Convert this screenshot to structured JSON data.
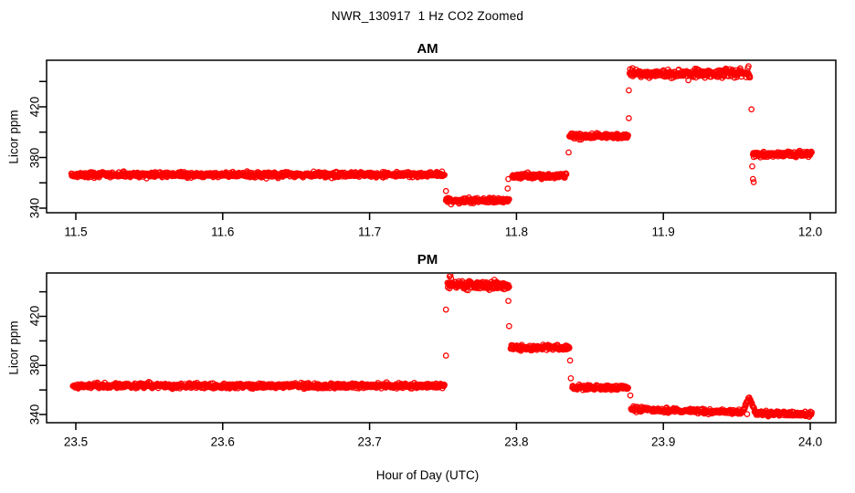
{
  "figure": {
    "title": "NWR_130917  1 Hz CO2 Zoomed",
    "xlabel": "Hour of Day (UTC)",
    "background": "#ffffff",
    "axis_color": "#000000",
    "point_color": "#ff0000"
  },
  "chart_data": [
    {
      "type": "scatter",
      "panel_title": "AM",
      "ylabel": "Licor ppm",
      "marker": "open-circle",
      "color": "#ff0000",
      "sample_rate_hz": 1,
      "xlim": [
        11.5,
        12.0
      ],
      "ylim": [
        336,
        456
      ],
      "grid": false,
      "xticks": [
        11.5,
        11.6,
        11.7,
        11.8,
        11.9,
        12.0
      ],
      "xtick_labels": [
        "11.5",
        "11.6",
        "11.7",
        "11.8",
        "11.9",
        "12.0"
      ],
      "yticks": [
        340,
        360,
        380,
        400,
        420,
        440
      ],
      "ytick_labels": [
        "340",
        "",
        "380",
        "",
        "420",
        ""
      ],
      "segments": [
        {
          "start_hr": 11.497,
          "end_hr": 11.751,
          "start_ppm": 366.3,
          "end_ppm": 366.5,
          "noise_sd_ppm": 1.0
        },
        {
          "start_hr": 11.752,
          "end_hr": 11.795,
          "start_ppm": 346.0,
          "end_ppm": 346.0,
          "noise_sd_ppm": 1.0
        },
        {
          "start_hr": 11.797,
          "end_hr": 11.834,
          "start_ppm": 365.3,
          "end_ppm": 365.3,
          "noise_sd_ppm": 1.0
        },
        {
          "start_hr": 11.836,
          "end_hr": 11.876,
          "start_ppm": 396.8,
          "end_ppm": 396.8,
          "noise_sd_ppm": 1.0
        },
        {
          "start_hr": 11.877,
          "end_hr": 11.959,
          "start_ppm": 446.2,
          "end_ppm": 446.5,
          "noise_sd_ppm": 1.5
        },
        {
          "start_hr": 11.961,
          "end_hr": 12.001,
          "start_ppm": 382.5,
          "end_ppm": 383.0,
          "noise_sd_ppm": 1.0
        }
      ],
      "outliers": [
        [
          11.752,
          353.5
        ],
        [
          11.7555,
          343.0
        ],
        [
          11.794,
          355.5
        ],
        [
          11.7945,
          363.0
        ],
        [
          11.8355,
          384.0
        ],
        [
          11.8765,
          433.0
        ],
        [
          11.8765,
          411.0
        ],
        [
          11.879,
          450.5
        ],
        [
          11.917,
          441.0
        ],
        [
          11.9575,
          450.5
        ],
        [
          11.958,
          452.0
        ],
        [
          11.96,
          418.0
        ],
        [
          11.9605,
          373.0
        ],
        [
          11.961,
          363.0
        ],
        [
          11.9615,
          360.5
        ]
      ]
    },
    {
      "type": "scatter",
      "panel_title": "PM",
      "ylabel": "Licor ppm",
      "marker": "open-circle",
      "color": "#ff0000",
      "sample_rate_hz": 1,
      "xlim": [
        23.5,
        24.0
      ],
      "ylim": [
        330,
        456
      ],
      "grid": false,
      "xticks": [
        23.5,
        23.6,
        23.7,
        23.8,
        23.9,
        24.0
      ],
      "xtick_labels": [
        "23.5",
        "23.6",
        "23.7",
        "23.8",
        "23.9",
        "24.0"
      ],
      "yticks": [
        340,
        360,
        380,
        400,
        420,
        440
      ],
      "ytick_labels": [
        "340",
        "",
        "380",
        "",
        "420",
        ""
      ],
      "segments": [
        {
          "start_hr": 23.498,
          "end_hr": 23.751,
          "start_ppm": 363.5,
          "end_ppm": 363.5,
          "noise_sd_ppm": 1.0
        },
        {
          "start_hr": 23.753,
          "end_hr": 23.795,
          "start_ppm": 445.8,
          "end_ppm": 445.3,
          "noise_sd_ppm": 1.7
        },
        {
          "start_hr": 23.796,
          "end_hr": 23.836,
          "start_ppm": 394.5,
          "end_ppm": 394.5,
          "noise_sd_ppm": 1.0
        },
        {
          "start_hr": 23.838,
          "end_hr": 23.876,
          "start_ppm": 362.0,
          "end_ppm": 362.0,
          "noise_sd_ppm": 1.0
        },
        {
          "start_hr": 23.878,
          "end_hr": 23.954,
          "start_ppm": 344.3,
          "end_ppm": 342.0,
          "noise_sd_ppm": 0.9
        },
        {
          "start_hr": 23.954,
          "end_hr": 23.9585,
          "start_ppm": 342.5,
          "end_ppm": 354.0,
          "noise_sd_ppm": 0.8
        },
        {
          "start_hr": 23.9585,
          "end_hr": 23.963,
          "start_ppm": 354.0,
          "end_ppm": 341.0,
          "noise_sd_ppm": 0.8
        },
        {
          "start_hr": 23.963,
          "end_hr": 24.001,
          "start_ppm": 341.0,
          "end_ppm": 340.3,
          "noise_sd_ppm": 0.9
        }
      ],
      "outliers": [
        [
          23.752,
          425.5
        ],
        [
          23.752,
          388.0
        ],
        [
          23.7545,
          452.5
        ],
        [
          23.755,
          453.5
        ],
        [
          23.7555,
          451.0
        ],
        [
          23.7945,
          432.5
        ],
        [
          23.795,
          412.0
        ],
        [
          23.8365,
          384.0
        ],
        [
          23.837,
          369.5
        ],
        [
          23.8775,
          355.5
        ],
        [
          23.957,
          340.3
        ]
      ]
    }
  ]
}
